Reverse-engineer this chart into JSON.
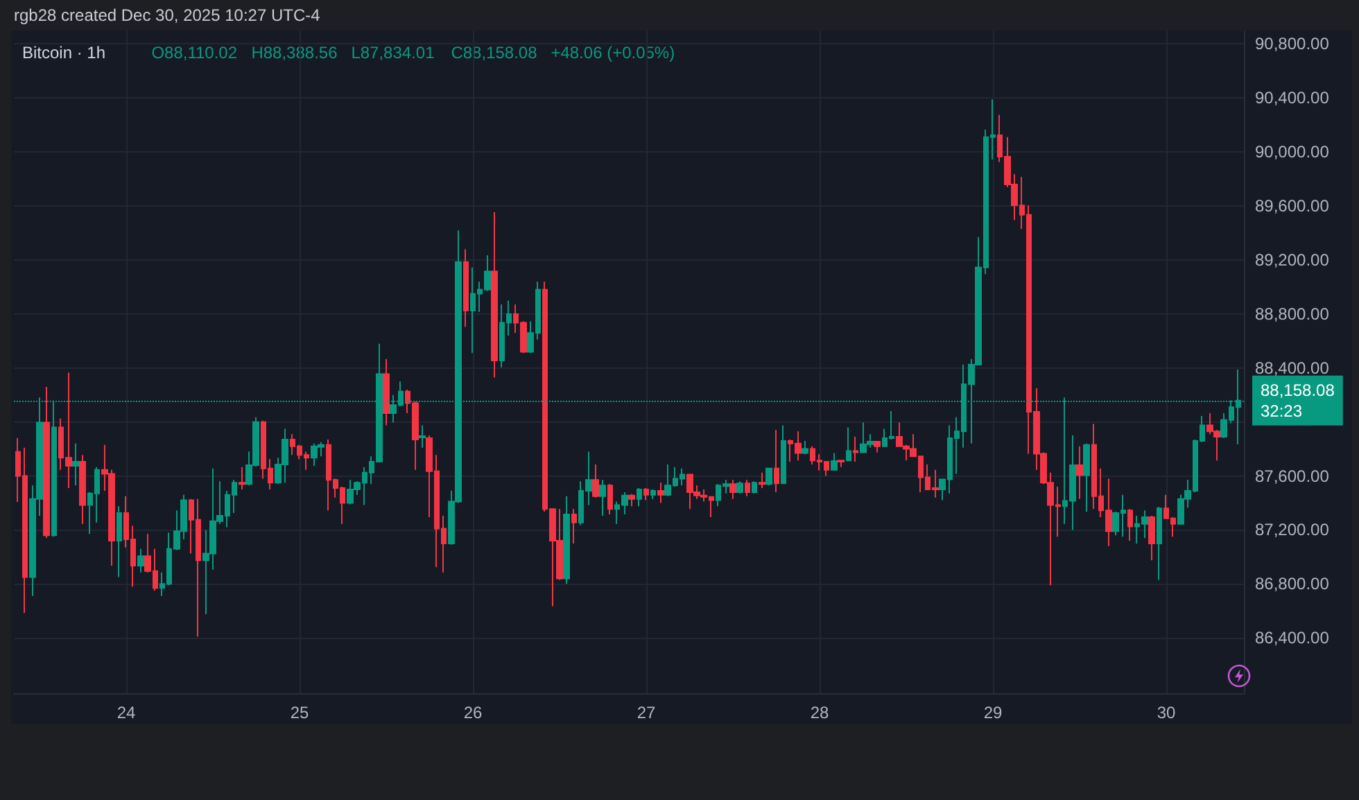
{
  "chart_data": {
    "type": "candlestick",
    "title": "Bitcoin · 1h",
    "subtitle": "rgb28 created Dec 30, 2025 10:27 UTC-4",
    "annotations": [
      "O88,110.02",
      "H88,388.56",
      "L87,834.01",
      "C88,158.08",
      "+48.06 (+0.05%)",
      "32:23"
    ],
    "colors": [
      "#f23645",
      "#f23645",
      "#089981",
      "#089981",
      "#f23645",
      "#089981",
      "#f23645",
      "#f23645",
      "#089981",
      "#f23645",
      "#089981",
      "#089981",
      "#f23645",
      "#f23645",
      "#089981",
      "#f23645",
      "#f23645",
      "#089981",
      "#f23645",
      "#f23645",
      "#089981",
      "#089981",
      "#089981",
      "#089981",
      "#f23645",
      "#f23645",
      "#089981",
      "#089981",
      "#089981",
      "#089981",
      "#089981",
      "#f23645",
      "#089981",
      "#089981",
      "#f23645",
      "#f23645",
      "#089981",
      "#089981",
      "#f23645",
      "#f23645",
      "#f23645",
      "#089981",
      "#089981",
      "#f23645",
      "#f23645",
      "#f23645",
      "#089981",
      "#089981",
      "#089981",
      "#089981",
      "#089981",
      "#f23645",
      "#089981",
      "#089981",
      "#f23645",
      "#f23645",
      "#089981",
      "#f23645",
      "#f23645",
      "#f23645",
      "#089981",
      "#089981",
      "#f23645",
      "#089981",
      "#089981",
      "#089981",
      "#f23645",
      "#089981",
      "#089981",
      "#f23645",
      "#f23645",
      "#089981",
      "#089981",
      "#f23645",
      "#f23645",
      "#f23645",
      "#089981",
      "#f23645",
      "#089981",
      "#089981",
      "#f23645",
      "#089981",
      "#f23645",
      "#089981",
      "#089981",
      "#f23645",
      "#089981",
      "#f23645",
      "#089981",
      "#f23645",
      "#089981",
      "#089981",
      "#089981",
      "#f23645",
      "#f23645",
      "#f23645",
      "#f23645",
      "#089981",
      "#089981",
      "#f23645",
      "#089981",
      "#f23645",
      "#089981",
      "#f23645",
      "#089981",
      "#f23645",
      "#089981",
      "#f23645",
      "#f23645",
      "#089981",
      "#f23645",
      "#f23645",
      "#f23645",
      "#089981",
      "#f23645",
      "#089981",
      "#f23645",
      "#089981",
      "#089981",
      "#f23645",
      "#089981",
      "#089981",
      "#f23645",
      "#f23645",
      "#f23645",
      "#f23645",
      "#f23645",
      "#f23645",
      "#089981",
      "#089981",
      "#089981",
      "#089981",
      "#089981",
      "#089981",
      "#089981",
      "#089981",
      "#f23645",
      "#f23645",
      "#f23645",
      "#f23645",
      "#f23645",
      "#f23645",
      "#f23645",
      "#f23645",
      "#f23645",
      "#089981",
      "#089981",
      "#f23645",
      "#089981",
      "#f23645",
      "#f23645",
      "#f23645",
      "#089981",
      "#089981",
      "#f23645",
      "#089981",
      "#089981",
      "#f23645",
      "#089981",
      "#f23645",
      "#f23645",
      "#089981",
      "#089981",
      "#089981",
      "#089981",
      "#f23645",
      "#f23645",
      "#089981",
      "#089981",
      "#089981"
    ],
    "xlim": [
      "2025-12-23T08:27",
      "2025-12-30T10:45"
    ],
    "xticks": [
      {
        "value": "2025-12-24",
        "label": "24"
      },
      {
        "value": "2025-12-25",
        "label": "25"
      },
      {
        "value": "2025-12-26",
        "label": "26"
      },
      {
        "value": "2025-12-27",
        "label": "27"
      },
      {
        "value": "2025-12-28",
        "label": "28"
      },
      {
        "value": "2025-12-29",
        "label": "29"
      },
      {
        "value": "2025-12-30",
        "label": "30"
      }
    ],
    "ylim": [
      85990,
      90900
    ],
    "yticks": [
      {
        "value": 86400,
        "label": "86,400.00"
      },
      {
        "value": 86800,
        "label": "86,800.00"
      },
      {
        "value": 87200,
        "label": "87,200.00"
      },
      {
        "value": 87600,
        "label": "87,600.00"
      },
      {
        "value": 88000,
        "label": null
      },
      {
        "value": 88400,
        "label": "88,400.00"
      },
      {
        "value": 88800,
        "label": "88,800.00"
      },
      {
        "value": 89200,
        "label": "89,200.00"
      },
      {
        "value": 89600,
        "label": "89,600.00"
      },
      {
        "value": 90000,
        "label": "90,000.00"
      },
      {
        "value": 90400,
        "label": "90,400.00"
      },
      {
        "value": 90800,
        "label": "90,800.00"
      }
    ],
    "grid": true,
    "ref_lines": [
      {
        "axis": "y",
        "value": 88158.08,
        "label": "88,158.08",
        "color": "#089981",
        "line_style": "dotted"
      }
    ],
    "x": [
      "2025-12-23T09:00",
      "2025-12-23T10:00",
      "2025-12-23T11:00",
      "2025-12-23T12:00",
      "2025-12-23T13:00",
      "2025-12-23T14:00",
      "2025-12-23T15:00",
      "2025-12-23T16:00",
      "2025-12-23T17:00",
      "2025-12-23T18:00",
      "2025-12-23T19:00",
      "2025-12-23T20:00",
      "2025-12-23T21:00",
      "2025-12-23T22:00",
      "2025-12-23T23:00",
      "2025-12-24T00:00",
      "2025-12-24T01:00",
      "2025-12-24T02:00",
      "2025-12-24T03:00",
      "2025-12-24T04:00",
      "2025-12-24T05:00",
      "2025-12-24T06:00",
      "2025-12-24T07:00",
      "2025-12-24T08:00",
      "2025-12-24T09:00",
      "2025-12-24T10:00",
      "2025-12-24T11:00",
      "2025-12-24T12:00",
      "2025-12-24T13:00",
      "2025-12-24T14:00",
      "2025-12-24T15:00",
      "2025-12-24T16:00",
      "2025-12-24T17:00",
      "2025-12-24T18:00",
      "2025-12-24T19:00",
      "2025-12-24T20:00",
      "2025-12-24T21:00",
      "2025-12-24T22:00",
      "2025-12-24T23:00",
      "2025-12-25T00:00",
      "2025-12-25T01:00",
      "2025-12-25T02:00",
      "2025-12-25T03:00",
      "2025-12-25T04:00",
      "2025-12-25T05:00",
      "2025-12-25T06:00",
      "2025-12-25T07:00",
      "2025-12-25T08:00",
      "2025-12-25T09:00",
      "2025-12-25T10:00",
      "2025-12-25T11:00",
      "2025-12-25T12:00",
      "2025-12-25T13:00",
      "2025-12-25T14:00",
      "2025-12-25T15:00",
      "2025-12-25T16:00",
      "2025-12-25T17:00",
      "2025-12-25T18:00",
      "2025-12-25T19:00",
      "2025-12-25T20:00",
      "2025-12-25T21:00",
      "2025-12-25T22:00",
      "2025-12-25T23:00",
      "2025-12-26T00:00",
      "2025-12-26T01:00",
      "2025-12-26T02:00",
      "2025-12-26T03:00",
      "2025-12-26T04:00",
      "2025-12-26T05:00",
      "2025-12-26T06:00",
      "2025-12-26T07:00",
      "2025-12-26T08:00",
      "2025-12-26T09:00",
      "2025-12-26T10:00",
      "2025-12-26T11:00",
      "2025-12-26T12:00",
      "2025-12-26T13:00",
      "2025-12-26T14:00",
      "2025-12-26T15:00",
      "2025-12-26T16:00",
      "2025-12-26T17:00",
      "2025-12-26T18:00",
      "2025-12-26T19:00",
      "2025-12-26T20:00",
      "2025-12-26T21:00",
      "2025-12-26T22:00",
      "2025-12-26T23:00",
      "2025-12-27T00:00",
      "2025-12-27T01:00",
      "2025-12-27T02:00",
      "2025-12-27T03:00",
      "2025-12-27T04:00",
      "2025-12-27T05:00",
      "2025-12-27T06:00",
      "2025-12-27T07:00",
      "2025-12-27T08:00",
      "2025-12-27T09:00",
      "2025-12-27T10:00",
      "2025-12-27T11:00",
      "2025-12-27T12:00",
      "2025-12-27T13:00",
      "2025-12-27T14:00",
      "2025-12-27T15:00",
      "2025-12-27T16:00",
      "2025-12-27T17:00",
      "2025-12-27T18:00",
      "2025-12-27T19:00",
      "2025-12-27T20:00",
      "2025-12-27T21:00",
      "2025-12-27T22:00",
      "2025-12-27T23:00",
      "2025-12-28T00:00",
      "2025-12-28T01:00",
      "2025-12-28T02:00",
      "2025-12-28T03:00",
      "2025-12-28T04:00",
      "2025-12-28T05:00",
      "2025-12-28T06:00",
      "2025-12-28T07:00",
      "2025-12-28T08:00",
      "2025-12-28T09:00",
      "2025-12-28T10:00",
      "2025-12-28T11:00",
      "2025-12-28T12:00",
      "2025-12-28T13:00",
      "2025-12-28T14:00",
      "2025-12-28T15:00",
      "2025-12-28T16:00",
      "2025-12-28T17:00",
      "2025-12-28T18:00",
      "2025-12-28T19:00",
      "2025-12-28T20:00",
      "2025-12-28T21:00",
      "2025-12-28T22:00",
      "2025-12-28T23:00",
      "2025-12-29T00:00",
      "2025-12-29T01:00",
      "2025-12-29T02:00",
      "2025-12-29T03:00",
      "2025-12-29T04:00",
      "2025-12-29T05:00",
      "2025-12-29T06:00",
      "2025-12-29T07:00",
      "2025-12-29T08:00",
      "2025-12-29T09:00",
      "2025-12-29T10:00",
      "2025-12-29T11:00",
      "2025-12-29T12:00",
      "2025-12-29T13:00",
      "2025-12-29T14:00",
      "2025-12-29T15:00",
      "2025-12-29T16:00",
      "2025-12-29T17:00",
      "2025-12-29T18:00",
      "2025-12-29T19:00",
      "2025-12-29T20:00",
      "2025-12-29T21:00",
      "2025-12-29T22:00",
      "2025-12-29T23:00",
      "2025-12-30T00:00",
      "2025-12-30T01:00",
      "2025-12-30T02:00",
      "2025-12-30T03:00",
      "2025-12-30T04:00",
      "2025-12-30T05:00",
      "2025-12-30T06:00",
      "2025-12-30T07:00",
      "2025-12-30T08:00",
      "2025-12-30T09:00",
      "2025-12-30T10:00"
    ],
    "ohlc": [
      [
        87778,
        87880,
        87407,
        87600
      ],
      [
        87600,
        87810,
        86585,
        86850
      ],
      [
        86850,
        87530,
        86710,
        87430
      ],
      [
        87430,
        88180,
        87305,
        87995
      ],
      [
        87995,
        88260,
        87140,
        87160
      ],
      [
        87160,
        88160,
        87150,
        87960
      ],
      [
        87960,
        88025,
        87645,
        87735
      ],
      [
        87735,
        88365,
        87510,
        87675
      ],
      [
        87675,
        87840,
        87530,
        87705
      ],
      [
        87705,
        87755,
        87245,
        87385
      ],
      [
        87385,
        87480,
        87170,
        87470
      ],
      [
        87470,
        87665,
        87255,
        87645
      ],
      [
        87645,
        87830,
        87490,
        87615
      ],
      [
        87615,
        87645,
        86935,
        87120
      ],
      [
        87120,
        87375,
        86850,
        87325
      ],
      [
        87325,
        87450,
        87070,
        87130
      ],
      [
        87130,
        87230,
        86780,
        86935
      ],
      [
        86935,
        87060,
        86885,
        87005
      ],
      [
        87005,
        87170,
        86885,
        86895
      ],
      [
        86895,
        87060,
        86750,
        86770
      ],
      [
        86770,
        86885,
        86710,
        86800
      ],
      [
        86800,
        87180,
        86790,
        87060
      ],
      [
        87060,
        87345,
        87050,
        87190
      ],
      [
        87190,
        87460,
        87130,
        87420
      ],
      [
        87420,
        87430,
        87025,
        87275
      ],
      [
        87275,
        87430,
        86410,
        86975
      ],
      [
        86975,
        87200,
        86575,
        87025
      ],
      [
        87025,
        87655,
        86905,
        87265
      ],
      [
        87265,
        87560,
        87245,
        87305
      ],
      [
        87305,
        87490,
        87220,
        87460
      ],
      [
        87460,
        87570,
        87325,
        87550
      ],
      [
        87550,
        87665,
        87500,
        87540
      ],
      [
        87540,
        87780,
        87530,
        87680
      ],
      [
        87680,
        88035,
        87670,
        88000
      ],
      [
        88000,
        88010,
        87580,
        87655
      ],
      [
        87655,
        87725,
        87500,
        87550
      ],
      [
        87550,
        87735,
        87540,
        87685
      ],
      [
        87685,
        87950,
        87550,
        87870
      ],
      [
        87870,
        87910,
        87755,
        87820
      ],
      [
        87820,
        87830,
        87725,
        87755
      ],
      [
        87755,
        87780,
        87645,
        87735
      ],
      [
        87735,
        87840,
        87675,
        87820
      ],
      [
        87815,
        87850,
        87745,
        87830
      ],
      [
        87830,
        87870,
        87345,
        87570
      ],
      [
        87570,
        87580,
        87440,
        87510
      ],
      [
        87510,
        87520,
        87245,
        87400
      ],
      [
        87400,
        87570,
        87390,
        87500
      ],
      [
        87500,
        87560,
        87460,
        87550
      ],
      [
        87550,
        87665,
        87385,
        87625
      ],
      [
        87625,
        87745,
        87540,
        87705
      ],
      [
        87705,
        88580,
        87700,
        88355
      ],
      [
        88355,
        88465,
        87975,
        88065
      ],
      [
        88065,
        88200,
        87995,
        88125
      ],
      [
        88125,
        88300,
        88115,
        88225
      ],
      [
        88225,
        88240,
        88065,
        88140
      ],
      [
        88140,
        88150,
        87645,
        87870
      ],
      [
        87885,
        87975,
        87810,
        87895
      ],
      [
        87880,
        87900,
        87295,
        87635
      ],
      [
        87635,
        87755,
        86925,
        87210
      ],
      [
        87210,
        87305,
        86885,
        87100
      ],
      [
        87100,
        87490,
        87090,
        87410
      ],
      [
        87410,
        89420,
        87400,
        89185
      ],
      [
        89185,
        89280,
        88705,
        88825
      ],
      [
        88825,
        89145,
        88510,
        88950
      ],
      [
        88950,
        89040,
        88815,
        88980
      ],
      [
        88980,
        89235,
        88970,
        89115
      ],
      [
        89115,
        89555,
        88330,
        88455
      ],
      [
        88455,
        88870,
        88405,
        88735
      ],
      [
        88735,
        88900,
        88640,
        88800
      ],
      [
        88800,
        88870,
        88660,
        88735
      ],
      [
        88735,
        88745,
        88510,
        88520
      ],
      [
        88520,
        88745,
        88510,
        88660
      ],
      [
        88660,
        89040,
        88610,
        88980
      ],
      [
        88980,
        89040,
        87335,
        87355
      ],
      [
        87355,
        87360,
        86635,
        87120
      ],
      [
        87120,
        87355,
        86830,
        86840
      ],
      [
        86840,
        87450,
        86800,
        87315
      ],
      [
        87315,
        87355,
        87100,
        87255
      ],
      [
        87255,
        87560,
        87235,
        87490
      ],
      [
        87490,
        87780,
        87385,
        87570
      ],
      [
        87570,
        87685,
        87440,
        87450
      ],
      [
        87450,
        87570,
        87305,
        87530
      ],
      [
        87530,
        87540,
        87315,
        87355
      ],
      [
        87355,
        87410,
        87245,
        87385
      ],
      [
        87385,
        87480,
        87315,
        87455
      ],
      [
        87455,
        87465,
        87375,
        87430
      ],
      [
        87430,
        87510,
        87375,
        87500
      ],
      [
        87500,
        87510,
        87420,
        87460
      ],
      [
        87460,
        87500,
        87430,
        87490
      ],
      [
        87490,
        87550,
        87400,
        87460
      ],
      [
        87460,
        87685,
        87450,
        87530
      ],
      [
        87530,
        87665,
        87520,
        87580
      ],
      [
        87580,
        87655,
        87530,
        87610
      ],
      [
        87610,
        87615,
        87355,
        87480
      ],
      [
        87480,
        87530,
        87430,
        87455
      ],
      [
        87455,
        87500,
        87410,
        87445
      ],
      [
        87445,
        87450,
        87295,
        87420
      ],
      [
        87420,
        87540,
        87375,
        87530
      ],
      [
        87525,
        87570,
        87470,
        87540
      ],
      [
        87540,
        87570,
        87430,
        87480
      ],
      [
        87480,
        87560,
        87470,
        87545
      ],
      [
        87545,
        87570,
        87450,
        87480
      ],
      [
        87480,
        87560,
        87470,
        87550
      ],
      [
        87550,
        87625,
        87510,
        87540
      ],
      [
        87540,
        87660,
        87530,
        87655
      ],
      [
        87655,
        87940,
        87480,
        87545
      ],
      [
        87545,
        87975,
        87540,
        87860
      ],
      [
        87860,
        87870,
        87705,
        87840
      ],
      [
        87840,
        87930,
        87715,
        87770
      ],
      [
        87770,
        87860,
        87760,
        87800
      ],
      [
        87800,
        87820,
        87685,
        87715
      ],
      [
        87715,
        87760,
        87640,
        87705
      ],
      [
        87705,
        87710,
        87600,
        87645
      ],
      [
        87645,
        87770,
        87640,
        87710
      ],
      [
        87715,
        87720,
        87665,
        87705
      ],
      [
        87715,
        87960,
        87710,
        87785
      ],
      [
        87785,
        87890,
        87705,
        87775
      ],
      [
        87775,
        87995,
        87770,
        87835
      ],
      [
        87835,
        87910,
        87810,
        87855
      ],
      [
        87855,
        87860,
        87775,
        87820
      ],
      [
        87820,
        87950,
        87815,
        87880
      ],
      [
        87880,
        88080,
        87870,
        87890
      ],
      [
        87890,
        87995,
        87815,
        87820
      ],
      [
        87820,
        87830,
        87715,
        87800
      ],
      [
        87800,
        87910,
        87740,
        87745
      ],
      [
        87745,
        87750,
        87480,
        87590
      ],
      [
        87590,
        87685,
        87495,
        87500
      ],
      [
        87510,
        87645,
        87440,
        87500
      ],
      [
        87500,
        87580,
        87420,
        87575
      ],
      [
        87575,
        87975,
        87470,
        87880
      ],
      [
        87880,
        88035,
        87615,
        87930
      ],
      [
        87930,
        88425,
        87810,
        88280
      ],
      [
        88280,
        88465,
        87840,
        88425
      ],
      [
        88425,
        89370,
        88420,
        89145
      ],
      [
        89145,
        90165,
        89095,
        90110
      ],
      [
        90110,
        90390,
        89945,
        90125
      ],
      [
        90125,
        90275,
        89925,
        89965
      ],
      [
        89965,
        90110,
        89740,
        89760
      ],
      [
        89760,
        89835,
        89495,
        89605
      ],
      [
        89605,
        89815,
        89430,
        89535
      ],
      [
        89535,
        89605,
        87765,
        88075
      ],
      [
        88075,
        88250,
        87645,
        87765
      ],
      [
        87765,
        87775,
        87540,
        87550
      ],
      [
        87550,
        87625,
        86790,
        87385
      ],
      [
        87385,
        87520,
        87150,
        87375
      ],
      [
        87375,
        88180,
        87245,
        87415
      ],
      [
        87415,
        87900,
        87200,
        87680
      ],
      [
        87680,
        87820,
        87430,
        87605
      ],
      [
        87605,
        87840,
        87335,
        87830
      ],
      [
        87830,
        87985,
        87355,
        87450
      ],
      [
        87450,
        87655,
        87295,
        87345
      ],
      [
        87345,
        87580,
        87080,
        87190
      ],
      [
        87190,
        87335,
        87160,
        87325
      ],
      [
        87325,
        87460,
        87150,
        87345
      ],
      [
        87345,
        87355,
        87120,
        87225
      ],
      [
        87225,
        87305,
        87100,
        87245
      ],
      [
        87245,
        87345,
        87140,
        87295
      ],
      [
        87295,
        87305,
        86975,
        87100
      ],
      [
        87100,
        87370,
        86830,
        87360
      ],
      [
        87360,
        87460,
        87280,
        87285
      ],
      [
        87285,
        87295,
        87150,
        87245
      ],
      [
        87245,
        87460,
        87240,
        87430
      ],
      [
        87430,
        87570,
        87365,
        87490
      ],
      [
        87490,
        87870,
        87480,
        87860
      ],
      [
        87860,
        88045,
        87850,
        87975
      ],
      [
        87975,
        88065,
        87910,
        87930
      ],
      [
        87930,
        87940,
        87715,
        87890
      ],
      [
        87890,
        88065,
        87880,
        88015
      ],
      [
        88015,
        88160,
        87990,
        88110.02
      ],
      [
        88110.02,
        88388.56,
        87834.01,
        88158.08
      ]
    ]
  }
}
